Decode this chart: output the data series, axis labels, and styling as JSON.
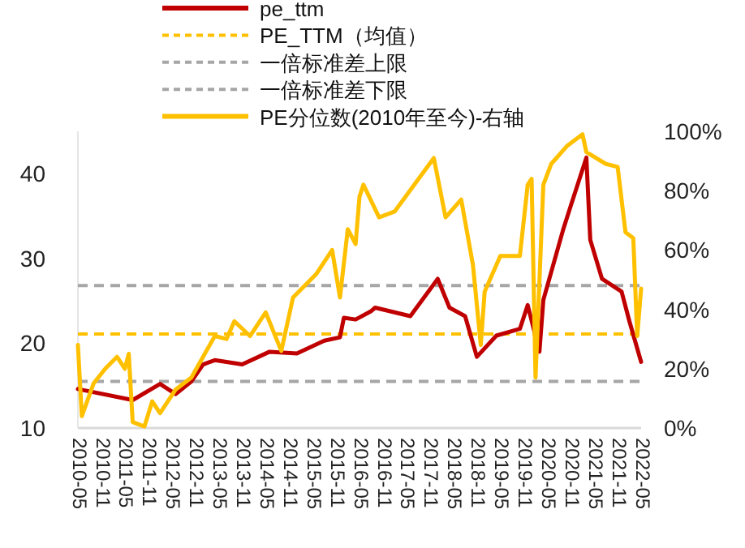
{
  "chart_data": {
    "type": "line",
    "legend": "top",
    "xlim": [
      "2010-05",
      "2022-05"
    ],
    "xticks": [
      "2010-05",
      "2010-11",
      "2011-05",
      "2011-11",
      "2012-05",
      "2012-11",
      "2013-05",
      "2013-11",
      "2014-05",
      "2014-11",
      "2015-05",
      "2015-11",
      "2016-05",
      "2016-11",
      "2017-05",
      "2017-11",
      "2018-05",
      "2018-11",
      "2019-05",
      "2019-11",
      "2020-05",
      "2020-11",
      "2021-05",
      "2021-11",
      "2022-05"
    ],
    "ylim": [
      10,
      45
    ],
    "yticks": [
      10,
      20,
      30,
      40
    ],
    "y2lim": [
      0,
      100
    ],
    "y2ticks": [
      {
        "value": 0,
        "label": "0%"
      },
      {
        "value": 20,
        "label": "20%"
      },
      {
        "value": 40,
        "label": "40%"
      },
      {
        "value": 60,
        "label": "60%"
      },
      {
        "value": 80,
        "label": "80%"
      },
      {
        "value": 100,
        "label": "100%"
      }
    ],
    "series": [
      {
        "name": "pe_ttm",
        "color": "#c00000",
        "x": [
          "2010-05",
          "2011-07",
          "2012-02",
          "2012-06",
          "2012-10",
          "2013-01",
          "2013-04",
          "2013-11",
          "2014-06",
          "2015-01",
          "2015-08",
          "2015-12",
          "2016-01",
          "2016-04",
          "2016-08",
          "2016-09",
          "2017-06",
          "2018-01",
          "2018-04",
          "2018-08",
          "2018-11",
          "2019-04",
          "2019-10",
          "2019-12",
          "2020-03",
          "2020-04",
          "2020-09",
          "2020-11",
          "2021-03",
          "2021-04",
          "2021-07",
          "2021-12",
          "2022-02",
          "2022-05"
        ],
        "values": [
          14.6,
          13.3,
          15.2,
          14.0,
          15.5,
          17.5,
          18.0,
          17.5,
          19.0,
          18.8,
          20.3,
          20.7,
          23.0,
          22.8,
          23.8,
          24.2,
          23.2,
          27.6,
          24.2,
          23.2,
          18.4,
          20.9,
          21.7,
          24.5,
          19.0,
          25.1,
          33.3,
          36.2,
          41.9,
          32.2,
          27.6,
          26.1,
          22.6,
          17.8
        ]
      },
      {
        "name": "PE分位数(2010年至今)-右轴",
        "color": "#ffc000",
        "axis": "y2",
        "x": [
          "2010-05",
          "2010-06",
          "2010-09",
          "2010-12",
          "2011-03",
          "2011-05",
          "2011-06",
          "2011-07",
          "2011-10",
          "2011-12",
          "2012-02",
          "2012-06",
          "2012-10",
          "2013-01",
          "2013-04",
          "2013-07",
          "2013-09",
          "2014-01",
          "2014-05",
          "2014-09",
          "2014-12",
          "2015-06",
          "2015-10",
          "2015-12",
          "2016-02",
          "2016-04",
          "2016-05",
          "2016-06",
          "2016-10",
          "2017-02",
          "2017-12",
          "2018-03",
          "2018-07",
          "2018-10",
          "2018-12",
          "2019-01",
          "2019-05",
          "2019-10",
          "2019-12",
          "2020-01",
          "2020-02",
          "2020-04",
          "2020-06",
          "2020-10",
          "2021-02",
          "2021-03",
          "2021-08",
          "2021-11",
          "2022-01",
          "2022-03",
          "2022-04",
          "2022-05"
        ],
        "values": [
          28,
          4,
          15,
          20,
          24,
          20,
          25,
          2,
          0.5,
          9,
          5,
          13,
          17,
          24,
          31,
          30,
          36,
          31,
          39,
          26,
          44,
          52,
          60,
          44,
          67,
          62,
          78,
          82,
          71,
          73,
          91,
          71,
          77,
          55,
          28,
          46,
          58,
          58,
          82,
          84,
          17,
          82,
          89,
          95,
          99,
          93,
          89,
          88,
          66,
          64,
          31,
          47
        ]
      }
    ],
    "ref_lines": [
      {
        "axis": "y",
        "value": 21.1,
        "label": "PE_TTM（均值）",
        "color": "#ffc000",
        "line_style": "dashed"
      },
      {
        "axis": "y",
        "value": 26.8,
        "label": "一倍标准差上限",
        "color": "#a6a6a6",
        "line_style": "dashed"
      },
      {
        "axis": "y",
        "value": 15.5,
        "label": "一倍标准差下限",
        "color": "#a6a6a6",
        "line_style": "dashed"
      }
    ]
  }
}
